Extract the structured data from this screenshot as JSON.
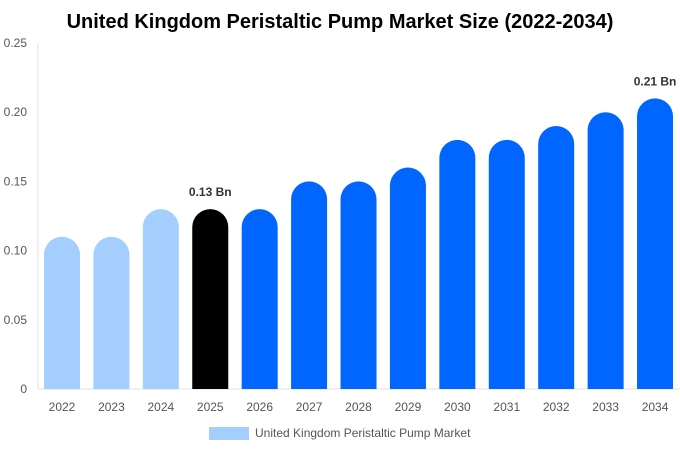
{
  "chart_data": {
    "type": "bar",
    "title": "United Kingdom Peristaltic Pump Market Size (2022-2034)",
    "categories": [
      "2022",
      "2023",
      "2024",
      "2025",
      "2026",
      "2027",
      "2028",
      "2029",
      "2030",
      "2031",
      "2032",
      "2033",
      "2034"
    ],
    "series": [
      {
        "name": "United Kingdom Peristaltic Pump Market",
        "values": [
          0.11,
          0.11,
          0.13,
          0.13,
          0.13,
          0.15,
          0.15,
          0.16,
          0.18,
          0.18,
          0.19,
          0.2,
          0.21
        ]
      }
    ],
    "bar_colors": [
      "#a4cefe",
      "#a4cefe",
      "#a4cefe",
      "#000000",
      "#0066ff",
      "#0066ff",
      "#0066ff",
      "#0066ff",
      "#0066ff",
      "#0066ff",
      "#0066ff",
      "#0066ff",
      "#0066ff"
    ],
    "annotations": [
      {
        "category": "2025",
        "text": "0.13 Bn"
      },
      {
        "category": "2034",
        "text": "0.21 Bn"
      }
    ],
    "yticks": [
      "0",
      "0.05",
      "0.10",
      "0.15",
      "0.20",
      "0.25"
    ],
    "ylim": [
      0,
      0.25
    ],
    "xlabel": "",
    "ylabel": "",
    "grid": false,
    "legend_placement": "bottom",
    "legend_color": "#a4cefe"
  }
}
